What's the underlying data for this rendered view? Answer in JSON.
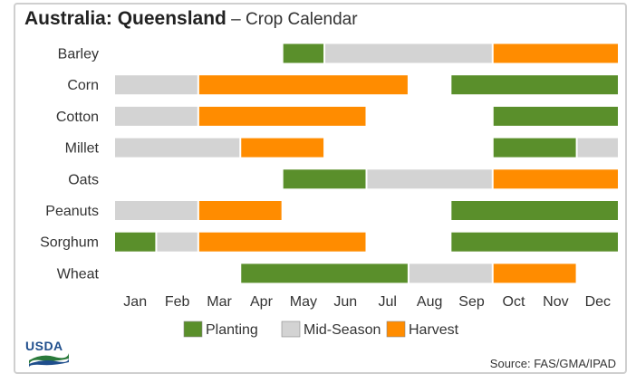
{
  "title": {
    "bold": "Australia: Queensland",
    "rest": " – Crop Calendar"
  },
  "source": "Source: FAS/GMA/IPAD",
  "logo": {
    "text": "USDA"
  },
  "colors": {
    "planting": "#5a8f2b",
    "midseason": "#d3d3d3",
    "harvest": "#ff8c00",
    "separator": "#ffffff"
  },
  "legend": [
    {
      "key": "planting",
      "label": "Planting"
    },
    {
      "key": "midseason",
      "label": "Mid-Season"
    },
    {
      "key": "harvest",
      "label": "Harvest"
    }
  ],
  "chart_data": {
    "type": "bar",
    "subtype": "timeline",
    "x_unit": "month",
    "months": [
      "Jan",
      "Feb",
      "Mar",
      "Apr",
      "May",
      "Jun",
      "Jul",
      "Aug",
      "Sep",
      "Oct",
      "Nov",
      "Dec"
    ],
    "categories": [
      "Barley",
      "Corn",
      "Cotton",
      "Millet",
      "Oats",
      "Peanuts",
      "Sorghum",
      "Wheat"
    ],
    "legend_placement": "bottom",
    "grid": false,
    "series": [
      {
        "name": "Barley",
        "segments": [
          {
            "stage": "planting",
            "start": "May",
            "end": "May"
          },
          {
            "stage": "midseason",
            "start": "Jun",
            "end": "Sep"
          },
          {
            "stage": "harvest",
            "start": "Oct",
            "end": "Dec"
          }
        ]
      },
      {
        "name": "Corn",
        "segments": [
          {
            "stage": "midseason",
            "start": "Jan",
            "end": "Feb"
          },
          {
            "stage": "harvest",
            "start": "Mar",
            "end": "Jul"
          },
          {
            "stage": "planting",
            "start": "Sep",
            "end": "Dec"
          }
        ]
      },
      {
        "name": "Cotton",
        "segments": [
          {
            "stage": "midseason",
            "start": "Jan",
            "end": "Feb"
          },
          {
            "stage": "harvest",
            "start": "Mar",
            "end": "Jun"
          },
          {
            "stage": "planting",
            "start": "Oct",
            "end": "Dec"
          }
        ]
      },
      {
        "name": "Millet",
        "segments": [
          {
            "stage": "midseason",
            "start": "Jan",
            "end": "Mar"
          },
          {
            "stage": "harvest",
            "start": "Apr",
            "end": "May"
          },
          {
            "stage": "planting",
            "start": "Oct",
            "end": "Nov"
          },
          {
            "stage": "midseason",
            "start": "Dec",
            "end": "Dec"
          }
        ]
      },
      {
        "name": "Oats",
        "segments": [
          {
            "stage": "planting",
            "start": "May",
            "end": "Jun"
          },
          {
            "stage": "midseason",
            "start": "Jul",
            "end": "Sep"
          },
          {
            "stage": "harvest",
            "start": "Oct",
            "end": "Dec"
          }
        ]
      },
      {
        "name": "Peanuts",
        "segments": [
          {
            "stage": "midseason",
            "start": "Jan",
            "end": "Feb"
          },
          {
            "stage": "harvest",
            "start": "Mar",
            "end": "Apr"
          },
          {
            "stage": "planting",
            "start": "Sep",
            "end": "Dec"
          }
        ]
      },
      {
        "name": "Sorghum",
        "segments": [
          {
            "stage": "planting",
            "start": "Jan",
            "end": "Jan"
          },
          {
            "stage": "midseason",
            "start": "Feb",
            "end": "Feb"
          },
          {
            "stage": "harvest",
            "start": "Mar",
            "end": "Jun"
          },
          {
            "stage": "planting",
            "start": "Sep",
            "end": "Dec"
          }
        ]
      },
      {
        "name": "Wheat",
        "segments": [
          {
            "stage": "planting",
            "start": "Apr",
            "end": "Jul"
          },
          {
            "stage": "midseason",
            "start": "Aug",
            "end": "Sep"
          },
          {
            "stage": "harvest",
            "start": "Oct",
            "end": "Nov"
          }
        ]
      }
    ]
  }
}
